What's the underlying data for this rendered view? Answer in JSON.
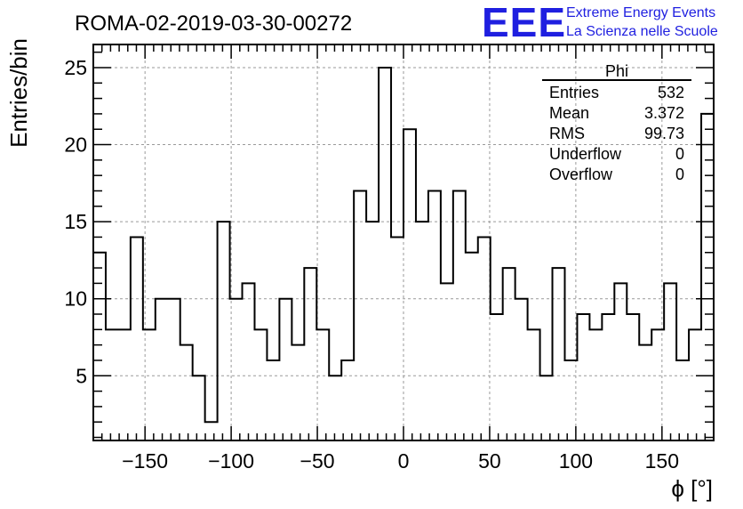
{
  "title": "ROMA-02-2019-03-30-00272",
  "logo": {
    "mark": "EEE",
    "line1": "Extreme Energy Events",
    "line2": "La Scienza nelle Scuole"
  },
  "stats_box": {
    "name": "Phi",
    "rows": [
      {
        "label": "Entries",
        "value": "532"
      },
      {
        "label": "Mean",
        "value": "3.372"
      },
      {
        "label": "RMS",
        "value": "99.73"
      },
      {
        "label": "Underflow",
        "value": "0"
      },
      {
        "label": "Overflow",
        "value": "0"
      }
    ]
  },
  "colors": {
    "histogram_line": "#000000",
    "grid": "#9a9a9a",
    "logo": "#1f1fe0"
  },
  "chart_data": {
    "type": "bar",
    "style": "step-histogram",
    "title": "ROMA-02-2019-03-30-00272",
    "xlabel": "ϕ [°]",
    "ylabel": "Entries/bin",
    "xlim": [
      -180,
      180
    ],
    "ylim": [
      0.8,
      26.5
    ],
    "bin_width": 7.2,
    "x_ticks": [
      -150,
      -100,
      -50,
      0,
      50,
      100,
      150
    ],
    "y_ticks": [
      5,
      10,
      15,
      20,
      25
    ],
    "grid": true,
    "values": [
      13,
      8,
      8,
      14,
      8,
      10,
      10,
      7,
      5,
      2,
      15,
      10,
      11,
      8,
      6,
      10,
      7,
      12,
      8,
      5,
      6,
      17,
      15,
      25,
      14,
      21,
      15,
      17,
      11,
      17,
      13,
      14,
      9,
      12,
      10,
      8,
      5,
      12,
      6,
      9,
      8,
      9,
      11,
      9,
      7,
      8,
      11,
      6,
      8,
      22
    ]
  }
}
